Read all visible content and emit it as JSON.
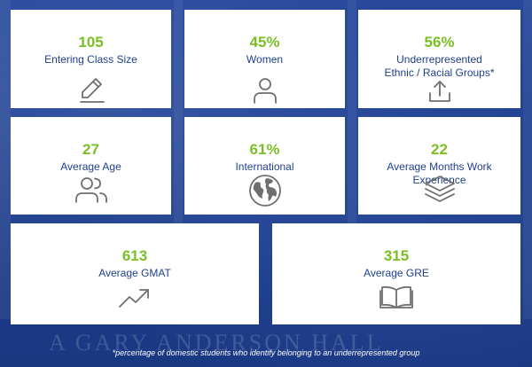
{
  "stats": [
    {
      "value": "105",
      "label": "Entering Class Size",
      "icon": "pencil-icon"
    },
    {
      "value": "45%",
      "label": "Women",
      "icon": "person-icon"
    },
    {
      "value": "56%",
      "label_lines": [
        "Underrepresented",
        "Ethnic / Racial Groups*"
      ],
      "icon": "upload-icon"
    },
    {
      "value": "27",
      "label": "Average Age",
      "icon": "people-icon"
    },
    {
      "value": "61%",
      "label": "International",
      "icon": "globe-icon"
    },
    {
      "value": "22",
      "label": "Average Months Work Experience",
      "icon": "layers-icon"
    },
    {
      "value": "613",
      "label": "Average GMAT",
      "icon": "trending-up-icon"
    },
    {
      "value": "315",
      "label": "Average GRE",
      "icon": "open-book-icon"
    }
  ],
  "background_text": "A GARY ANDERSON HALL",
  "footnote": "*percentage of domestic students who identify belonging to an underrepresented group",
  "colors": {
    "value": "#7bbf25",
    "label": "#1f3f8e",
    "icon": "#6f6f6f",
    "background": "#1f3f8e",
    "card": "#ffffff"
  }
}
